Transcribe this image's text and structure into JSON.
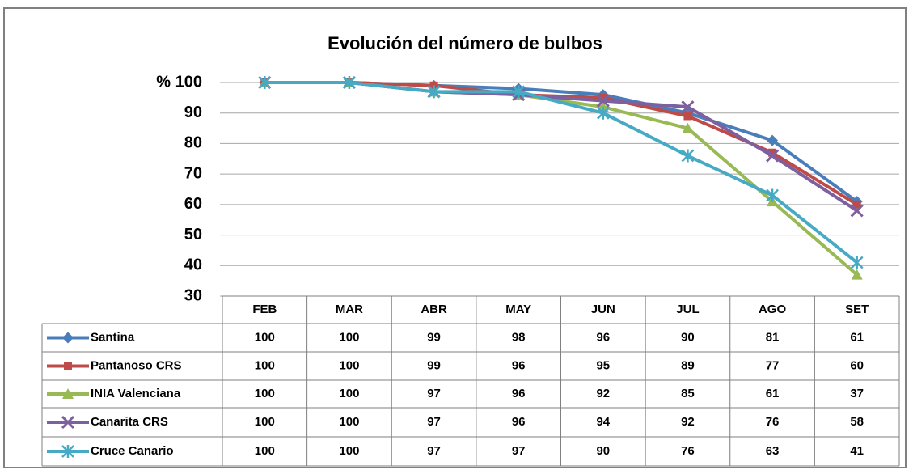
{
  "chart_data": {
    "type": "line",
    "title": "Evolución del número de bulbos",
    "categories": [
      "FEB",
      "MAR",
      "ABR",
      "MAY",
      "JUN",
      "JUL",
      "AGO",
      "SET"
    ],
    "series": [
      {
        "name": "Santina",
        "color": "#4a7ebb",
        "marker": "diamond",
        "values": [
          100,
          100,
          99,
          98,
          96,
          90,
          81,
          61
        ]
      },
      {
        "name": "Pantanoso CRS",
        "color": "#be4b48",
        "marker": "square",
        "values": [
          100,
          100,
          99,
          96,
          95,
          89,
          77,
          60
        ]
      },
      {
        "name": "INIA Valenciana",
        "color": "#98b954",
        "marker": "triangle",
        "values": [
          100,
          100,
          97,
          96,
          92,
          85,
          61,
          37
        ]
      },
      {
        "name": "Canarita CRS",
        "color": "#7d60a0",
        "marker": "x",
        "values": [
          100,
          100,
          97,
          96,
          94,
          92,
          76,
          58
        ]
      },
      {
        "name": "Cruce Canario",
        "color": "#46aac5",
        "marker": "star",
        "values": [
          100,
          100,
          97,
          97,
          90,
          76,
          63,
          41
        ]
      }
    ],
    "ylim": [
      30,
      100
    ],
    "yticks": [
      30,
      40,
      50,
      60,
      70,
      80,
      90,
      {
        "value": 100,
        "label": "% 100"
      }
    ],
    "grid": true,
    "data_table": true
  }
}
